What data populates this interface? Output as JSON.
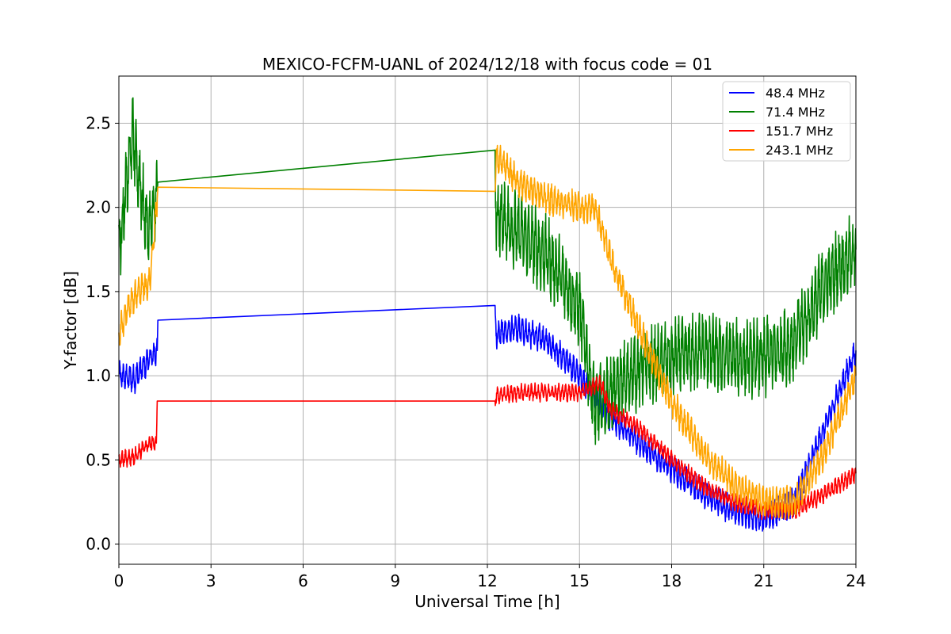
{
  "chart_data": {
    "type": "line",
    "title": "MEXICO-FCFM-UANL of 2024/12/18 with focus code = 01",
    "xlabel": "Universal Time [h]",
    "ylabel": "Y-factor [dB]",
    "xlim": [
      0,
      24
    ],
    "ylim": [
      -0.12,
      2.78
    ],
    "xticks": [
      0,
      3,
      6,
      9,
      12,
      15,
      18,
      21,
      24
    ],
    "xtick_labels": [
      "0",
      "3",
      "6",
      "9",
      "12",
      "15",
      "18",
      "21",
      "24"
    ],
    "yticks": [
      0.0,
      0.5,
      1.0,
      1.5,
      2.0,
      2.5
    ],
    "ytick_labels": [
      "0.0",
      "0.5",
      "1.0",
      "1.5",
      "2.0",
      "2.5"
    ],
    "grid": true,
    "legend_position": "top-right",
    "series": [
      {
        "name": " 48.4 MHz",
        "color": "#0000ff",
        "noise": 0.08,
        "x": [
          0,
          0.5,
          1.0,
          1.25,
          1.27,
          12.25,
          12.3,
          13.0,
          14.0,
          15.0,
          16.0,
          17.0,
          18.0,
          19.0,
          20.0,
          21.0,
          22.0,
          23.0,
          24.0
        ],
        "y": [
          1.0,
          0.98,
          1.1,
          1.15,
          1.33,
          1.34,
          1.25,
          1.28,
          1.2,
          1.0,
          0.75,
          0.6,
          0.45,
          0.3,
          0.2,
          0.15,
          0.25,
          0.7,
          1.15
        ]
      },
      {
        "name": " 71.4 MHz",
        "color": "#008000",
        "noise": 0.22,
        "x": [
          0,
          0.3,
          0.45,
          0.7,
          1.0,
          1.25,
          1.27,
          12.25,
          12.3,
          13.0,
          14.0,
          15.0,
          15.5,
          16.0,
          17.0,
          18.0,
          19.0,
          20.0,
          21.0,
          22.0,
          23.0,
          24.0
        ],
        "y": [
          1.75,
          2.2,
          2.45,
          2.1,
          1.85,
          2.1,
          2.15,
          2.17,
          1.95,
          1.85,
          1.7,
          1.4,
          0.8,
          0.9,
          1.05,
          1.1,
          1.15,
          1.1,
          1.1,
          1.2,
          1.55,
          1.75
        ]
      },
      {
        "name": " 151.7 MHz",
        "color": "#ff0000",
        "noise": 0.05,
        "x": [
          0,
          0.5,
          1.0,
          1.22,
          1.25,
          12.25,
          12.3,
          13.0,
          14.0,
          15.0,
          15.7,
          16.0,
          17.0,
          18.0,
          19.0,
          20.0,
          21.0,
          22.0,
          23.0,
          24.0
        ],
        "y": [
          0.5,
          0.52,
          0.6,
          0.6,
          0.85,
          0.87,
          0.88,
          0.9,
          0.9,
          0.9,
          0.95,
          0.8,
          0.68,
          0.5,
          0.35,
          0.25,
          0.2,
          0.2,
          0.3,
          0.42
        ]
      },
      {
        "name": " 243.1 MHz",
        "color": "#ffa500",
        "noise": 0.09,
        "x": [
          0,
          0.3,
          0.6,
          1.0,
          1.25,
          1.27,
          12.25,
          12.3,
          13.0,
          14.0,
          15.0,
          15.5,
          16.0,
          17.0,
          18.0,
          19.0,
          20.0,
          21.0,
          22.0,
          23.0,
          24.0
        ],
        "y": [
          1.25,
          1.4,
          1.5,
          1.55,
          2.05,
          2.12,
          2.14,
          2.3,
          2.15,
          2.05,
          2.0,
          2.0,
          1.7,
          1.25,
          0.85,
          0.55,
          0.35,
          0.25,
          0.25,
          0.55,
          1.0
        ]
      }
    ]
  }
}
